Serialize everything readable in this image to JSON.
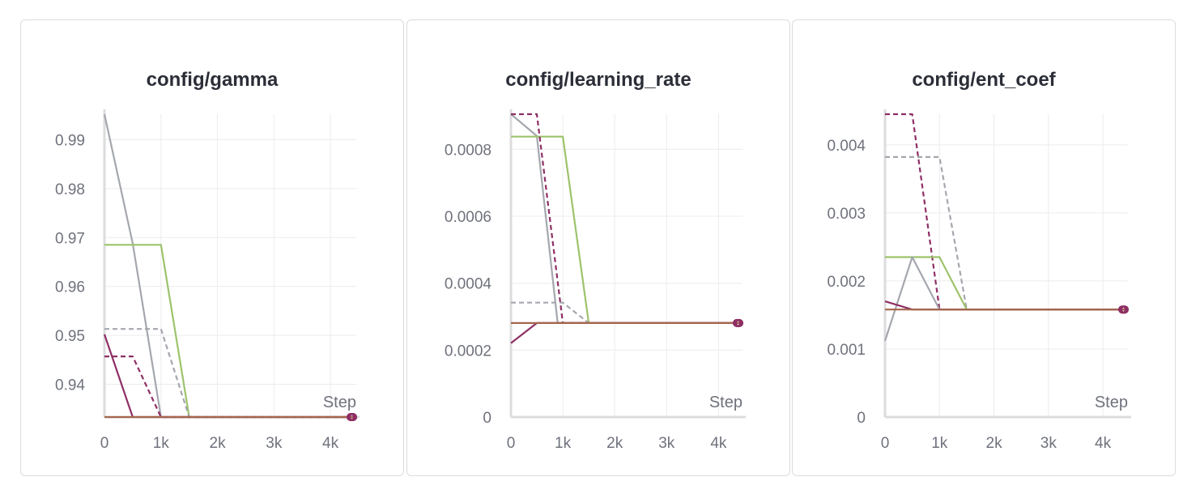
{
  "colors": {
    "gray": "#a4a7ad",
    "green": "#9dc36b",
    "maroon": "#8e2f64",
    "brown": "#a5664c",
    "grid": "#ececee",
    "axis": "#dcdcdf"
  },
  "chart_data": [
    {
      "type": "line",
      "title": "config/gamma",
      "xlabel": "Step",
      "ylabel": "",
      "xlim": [
        0,
        4400
      ],
      "ylim": [
        0.9333,
        0.9952
      ],
      "xticks": [
        0,
        1000,
        2000,
        3000,
        4000
      ],
      "xtick_labels": [
        "0",
        "1k",
        "2k",
        "3k",
        "4k"
      ],
      "yticks": [
        0.94,
        0.95,
        0.96,
        0.97,
        0.98,
        0.99
      ],
      "ytick_labels": [
        "0.94",
        "0.95",
        "0.96",
        "0.97",
        "0.98",
        "0.99"
      ],
      "grid": true,
      "legend": "none",
      "series": [
        {
          "color": "gray",
          "dash": false,
          "x": [
            0,
            500,
            1000,
            4400
          ],
          "y": [
            0.9952,
            0.9688,
            0.9333,
            0.9333
          ]
        },
        {
          "color": "green",
          "dash": false,
          "x": [
            0,
            1000,
            1500,
            4400
          ],
          "y": [
            0.9685,
            0.9685,
            0.9333,
            0.9333
          ]
        },
        {
          "color": "gray",
          "dash": true,
          "x": [
            0,
            1000,
            1500,
            4400
          ],
          "y": [
            0.9513,
            0.9513,
            0.9333,
            0.9333
          ]
        },
        {
          "color": "maroon",
          "dash": true,
          "x": [
            0,
            500,
            1000,
            4400
          ],
          "y": [
            0.9457,
            0.9457,
            0.9333,
            0.9333
          ]
        },
        {
          "color": "maroon",
          "dash": false,
          "x": [
            0,
            500,
            4400
          ],
          "y": [
            0.9502,
            0.9333,
            0.9333
          ]
        },
        {
          "color": "brown",
          "dash": false,
          "x": [
            0,
            4400
          ],
          "y": [
            0.9333,
            0.9333
          ]
        }
      ]
    },
    {
      "type": "line",
      "title": "config/learning_rate",
      "xlabel": "Step",
      "ylabel": "",
      "xlim": [
        0,
        4400
      ],
      "ylim": [
        0,
        0.000905
      ],
      "xticks": [
        0,
        1000,
        2000,
        3000,
        4000
      ],
      "xtick_labels": [
        "0",
        "1k",
        "2k",
        "3k",
        "4k"
      ],
      "yticks": [
        0,
        0.0002,
        0.0004,
        0.0006,
        0.0008
      ],
      "ytick_labels": [
        "0",
        "0.0002",
        "0.0004",
        "0.0006",
        "0.0008"
      ],
      "grid": true,
      "legend": "none",
      "series": [
        {
          "color": "gray",
          "dash": false,
          "x": [
            0,
            500,
            900,
            4400
          ],
          "y": [
            0.000905,
            0.00084,
            0.000281,
            0.000281
          ]
        },
        {
          "color": "green",
          "dash": false,
          "x": [
            0,
            1000,
            1500,
            4400
          ],
          "y": [
            0.000838,
            0.000838,
            0.000281,
            0.000281
          ]
        },
        {
          "color": "maroon",
          "dash": true,
          "x": [
            0,
            500,
            1000,
            4400
          ],
          "y": [
            0.000905,
            0.000905,
            0.000281,
            0.000281
          ]
        },
        {
          "color": "gray",
          "dash": true,
          "x": [
            0,
            1000,
            1500,
            4400
          ],
          "y": [
            0.000342,
            0.000342,
            0.000281,
            0.000281
          ]
        },
        {
          "color": "maroon",
          "dash": false,
          "x": [
            0,
            500,
            4400
          ],
          "y": [
            0.000221,
            0.000281,
            0.000281
          ]
        },
        {
          "color": "brown",
          "dash": false,
          "x": [
            0,
            4400
          ],
          "y": [
            0.000281,
            0.000281
          ]
        }
      ]
    },
    {
      "type": "line",
      "title": "config/ent_coef",
      "xlabel": "Step",
      "ylabel": "",
      "xlim": [
        0,
        4400
      ],
      "ylim": [
        0,
        0.00445
      ],
      "xticks": [
        0,
        1000,
        2000,
        3000,
        4000
      ],
      "xtick_labels": [
        "0",
        "1k",
        "2k",
        "3k",
        "4k"
      ],
      "yticks": [
        0,
        0.001,
        0.002,
        0.003,
        0.004
      ],
      "ytick_labels": [
        "0",
        "0.001",
        "0.002",
        "0.003",
        "0.004"
      ],
      "grid": true,
      "legend": "none",
      "series": [
        {
          "color": "maroon",
          "dash": true,
          "x": [
            0,
            500,
            1000,
            4400
          ],
          "y": [
            0.00445,
            0.00445,
            0.00158,
            0.00158
          ]
        },
        {
          "color": "gray",
          "dash": true,
          "x": [
            0,
            1000,
            1500,
            4400
          ],
          "y": [
            0.00382,
            0.00382,
            0.00158,
            0.00158
          ]
        },
        {
          "color": "green",
          "dash": false,
          "x": [
            0,
            1000,
            1500,
            4400
          ],
          "y": [
            0.00235,
            0.00235,
            0.00158,
            0.00158
          ]
        },
        {
          "color": "gray",
          "dash": false,
          "x": [
            0,
            500,
            1000,
            4400
          ],
          "y": [
            0.00112,
            0.00235,
            0.00158,
            0.00158
          ]
        },
        {
          "color": "maroon",
          "dash": false,
          "x": [
            0,
            500,
            4400
          ],
          "y": [
            0.0017,
            0.00158,
            0.00158
          ]
        },
        {
          "color": "brown",
          "dash": false,
          "x": [
            0,
            4400
          ],
          "y": [
            0.00158,
            0.00158
          ]
        }
      ]
    }
  ]
}
